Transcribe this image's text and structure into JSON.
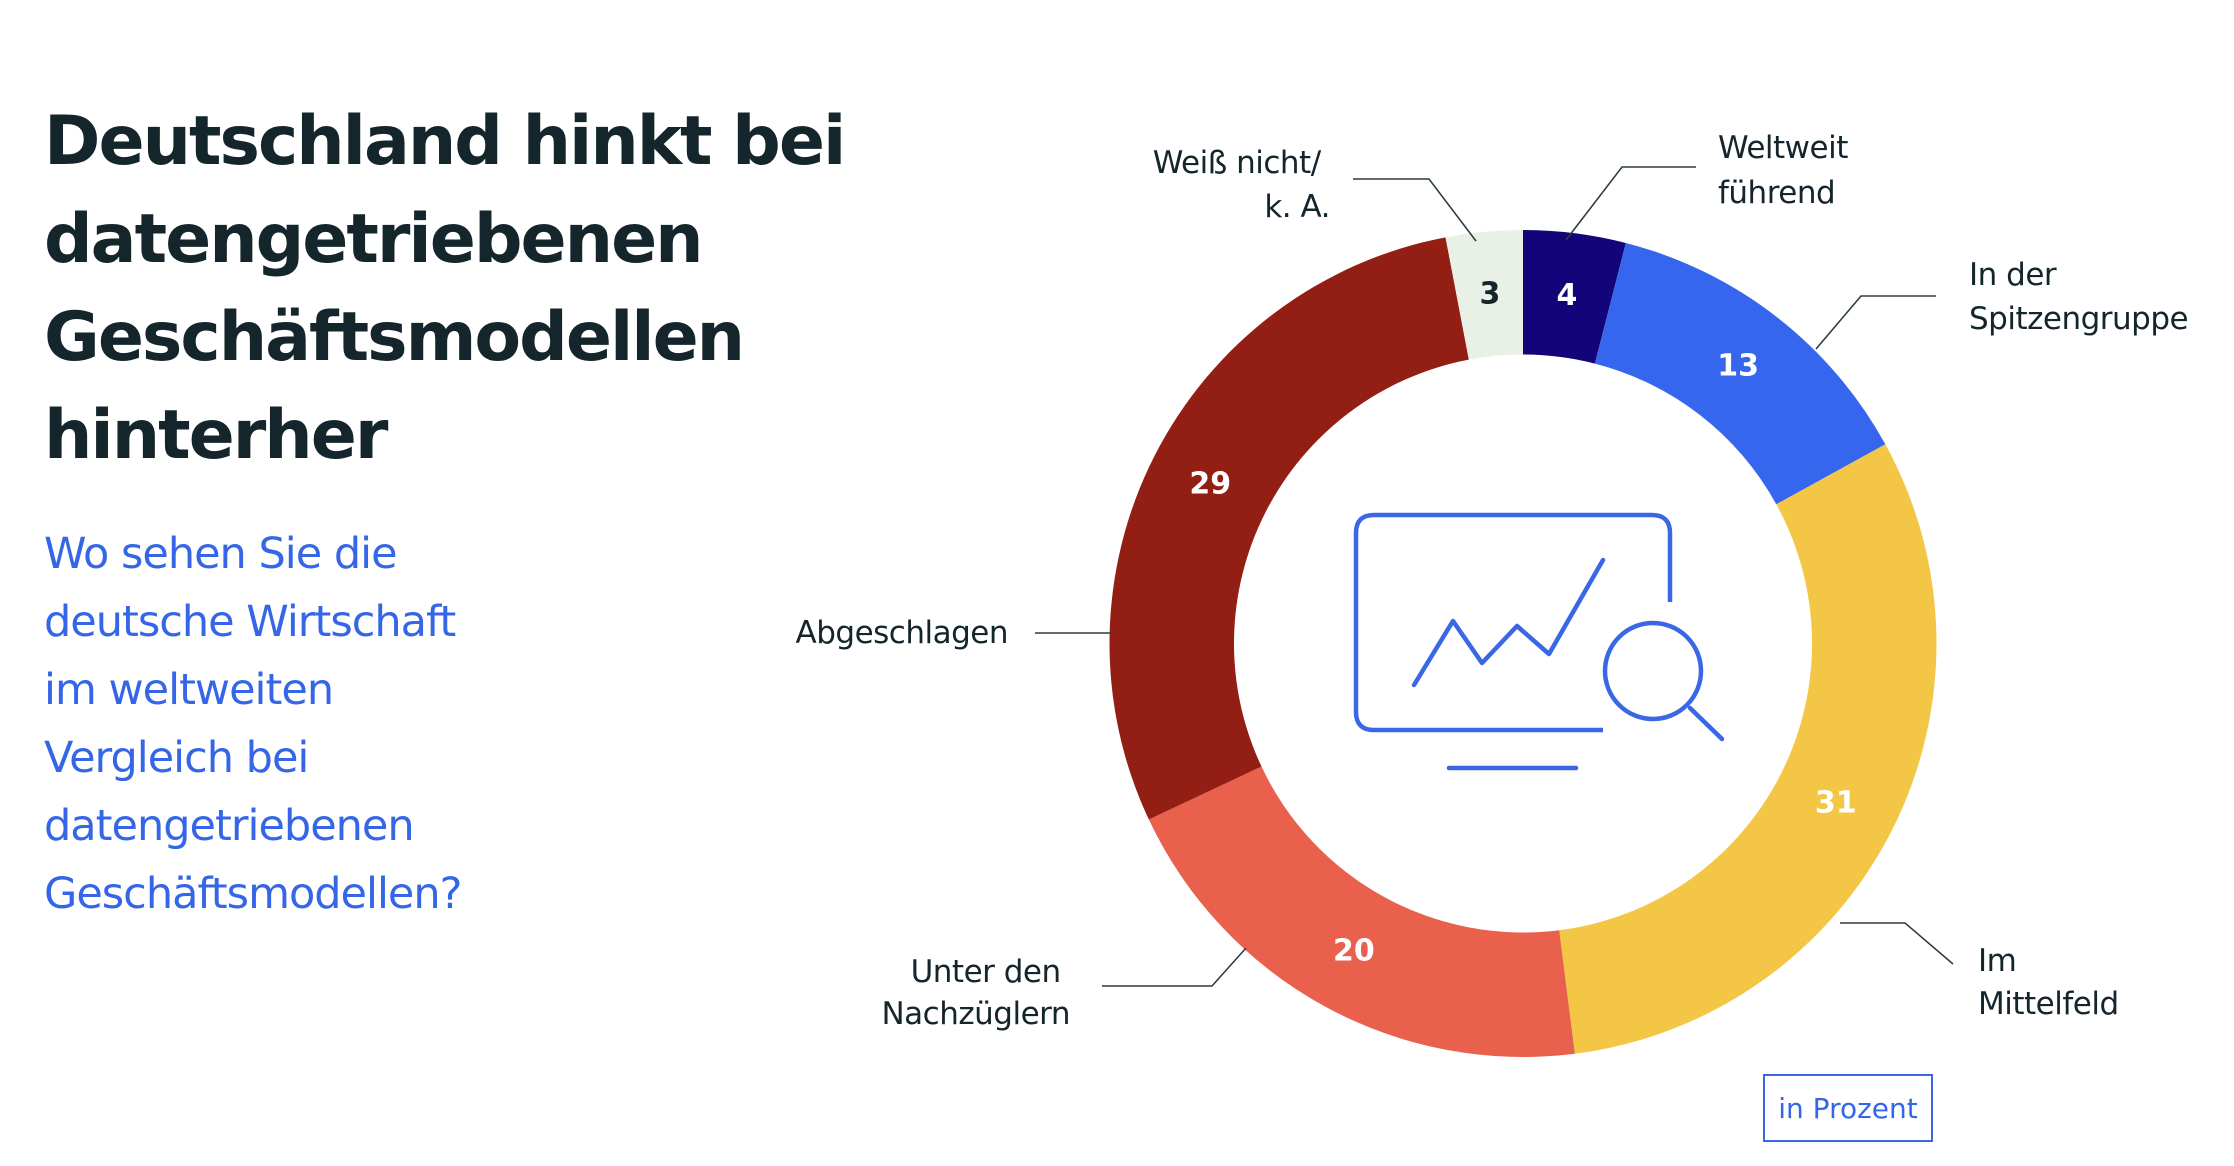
{
  "header": {
    "title_lines": [
      "Deutschland hinkt bei",
      "datengetriebenen",
      "Geschäftsmodellen",
      "hinterher"
    ],
    "subtitle_lines": [
      "Wo sehen Sie die",
      "deutsche Wirtschaft",
      "im weltweiten",
      "Vergleich bei",
      "datengetriebenen",
      "Geschäftsmodellen?"
    ]
  },
  "unit_label": "in Prozent",
  "center_icon": "monitor-chart-magnifier-icon",
  "chart_data": {
    "type": "pie",
    "variant": "donut",
    "title": "Deutschland hinkt bei datengetriebenen Geschäftsmodellen hinterher",
    "subtitle": "Wo sehen Sie die deutsche Wirtschaft im weltweiten Vergleich bei datengetriebenen Geschäftsmodellen?",
    "unit": "in Prozent",
    "start": "top",
    "direction": "clockwise",
    "slices": [
      {
        "key": "weltweit",
        "label_lines": [
          "Weltweit",
          "führend"
        ],
        "value": 4,
        "value_label": "4",
        "color": "#14047a",
        "value_color": "#ffffff"
      },
      {
        "key": "spitze",
        "label_lines": [
          "In der",
          "Spitzengruppe"
        ],
        "value": 13,
        "value_label": "13",
        "color": "#3566ed",
        "value_color": "#ffffff"
      },
      {
        "key": "mittelfeld",
        "label_lines": [
          "Im",
          "Mittelfeld"
        ],
        "value": 31,
        "value_label": "31",
        "color": "#f4c646",
        "value_color": "#ffffff"
      },
      {
        "key": "nachzuegler",
        "label_lines": [
          "Unter den",
          "Nachzüglern"
        ],
        "value": 20,
        "value_label": "20",
        "color": "#e9604d",
        "value_color": "#ffffff"
      },
      {
        "key": "abgeschlagen",
        "label_lines": [
          "Abgeschlagen"
        ],
        "value": 29,
        "value_label": "29",
        "color": "#921e14",
        "value_color": "#ffffff"
      },
      {
        "key": "weissnicht",
        "label_lines": [
          "Weiß nicht/",
          "k. A."
        ],
        "value": 3,
        "value_label": "3",
        "color": "#e9f1e6",
        "value_color": "#14252b"
      }
    ]
  }
}
